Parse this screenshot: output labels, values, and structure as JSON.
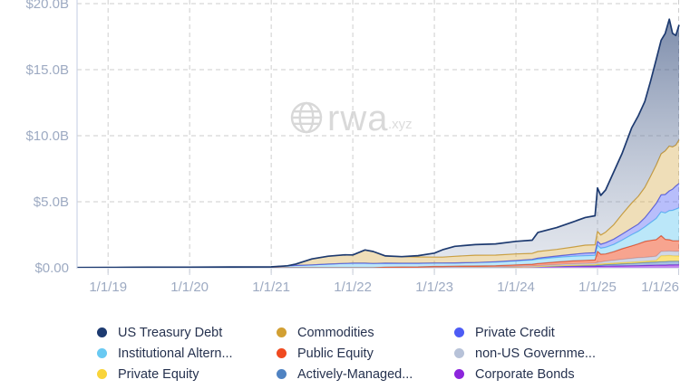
{
  "watermark": {
    "brand": "rwa",
    "suffix": ".xyz",
    "color": "#d9d9d9"
  },
  "legend": {
    "items": [
      {
        "series": "us-treasury-debt",
        "label": "US Treasury Debt",
        "color": "#1d3a70"
      },
      {
        "series": "institutional-alternative",
        "label": "Institutional Altern...",
        "color": "#69c9f2"
      },
      {
        "series": "private-equity",
        "label": "Private Equity",
        "color": "#f9d43a"
      },
      {
        "series": "commodities",
        "label": "Commodities",
        "color": "#d2a033"
      },
      {
        "series": "public-equity",
        "label": "Public Equity",
        "color": "#f04a20"
      },
      {
        "series": "actively-managed",
        "label": "Actively-Managed...",
        "color": "#5083c2"
      },
      {
        "series": "private-credit",
        "label": "Private Credit",
        "color": "#4d5cf5"
      },
      {
        "series": "non-us-government",
        "label": "non-US Governme...",
        "color": "#b7c2d8"
      },
      {
        "series": "corporate-bonds",
        "label": "Corporate Bonds",
        "color": "#8c25dc"
      }
    ]
  },
  "chart_data": {
    "type": "area",
    "stacked": true,
    "title": "",
    "xlabel": "",
    "ylabel": "",
    "x_unit": "decimal_year",
    "y_unit": "USD billions",
    "x_domain": [
      2018.62,
      2026.0
    ],
    "y_domain": [
      0,
      20
    ],
    "grid": "dashed",
    "legend_position": "bottom",
    "style": {
      "tick_label_color": "#9daac2",
      "grid_color": "#cecece",
      "axis_line_color": "#c3cde3",
      "baseline_color": "#dde2eb",
      "tick_mark_color": "#c9cfdb"
    },
    "y_ticks": [
      {
        "value": 0,
        "label": "$0.00"
      },
      {
        "value": 5,
        "label": "$5.0B"
      },
      {
        "value": 10,
        "label": "$10.0B"
      },
      {
        "value": 15,
        "label": "$15.0B"
      },
      {
        "value": 20,
        "label": "$20.0B"
      }
    ],
    "x_ticks": [
      {
        "value": 2019,
        "label": "1/1/19"
      },
      {
        "value": 2020,
        "label": "1/1/20"
      },
      {
        "value": 2021,
        "label": "1/1/21"
      },
      {
        "value": 2022,
        "label": "1/1/22"
      },
      {
        "value": 2023,
        "label": "1/1/23"
      },
      {
        "value": 2024,
        "label": "1/1/24"
      },
      {
        "value": 2025,
        "label": "1/1/25"
      },
      {
        "value": 2026,
        "label": "1/1/26"
      }
    ],
    "x": [
      2018.62,
      2019,
      2019.5,
      2020,
      2020.5,
      2021,
      2021.2,
      2021.3,
      2021.5,
      2021.7,
      2021.9,
      2022,
      2022.15,
      2022.25,
      2022.4,
      2022.6,
      2022.8,
      2023,
      2023.1,
      2023.25,
      2023.5,
      2023.75,
      2024,
      2024.2,
      2024.27,
      2024.5,
      2024.7,
      2024.85,
      2024.97,
      2025,
      2025.04,
      2025.1,
      2025.2,
      2025.3,
      2025.42,
      2025.5,
      2025.58,
      2025.65,
      2025.72,
      2025.78,
      2025.83,
      2025.88,
      2025.92,
      2025.96,
      2026
    ],
    "series": [
      {
        "name": "corporate-bonds",
        "label": "Corporate Bonds",
        "color": "#8c25dc",
        "fill": "rgba(140,37,220,0.55)",
        "values": [
          0,
          0,
          0,
          0,
          0,
          0,
          0,
          0,
          0,
          0,
          0,
          0,
          0,
          0,
          0,
          0,
          0.01,
          0.03,
          0.03,
          0.04,
          0.05,
          0.06,
          0.07,
          0.08,
          0.08,
          0.09,
          0.1,
          0.1,
          0.1,
          0.11,
          0.11,
          0.12,
          0.13,
          0.14,
          0.15,
          0.16,
          0.17,
          0.18,
          0.19,
          0.2,
          0.2,
          0.21,
          0.21,
          0.22,
          0.22
        ]
      },
      {
        "name": "actively-managed",
        "label": "Actively-Managed...",
        "color": "#5083c2",
        "fill": "rgba(80,131,194,0.5)",
        "values": [
          0,
          0,
          0,
          0,
          0,
          0,
          0,
          0,
          0,
          0,
          0,
          0,
          0,
          0,
          0,
          0,
          0,
          0,
          0,
          0,
          0,
          0,
          0,
          0,
          0,
          0.03,
          0.05,
          0.07,
          0.08,
          0.1,
          0.1,
          0.12,
          0.14,
          0.16,
          0.18,
          0.2,
          0.22,
          0.24,
          0.25,
          0.26,
          0.27,
          0.28,
          0.28,
          0.28,
          0.28
        ]
      },
      {
        "name": "private-equity",
        "label": "Private Equity",
        "color": "#f9d43a",
        "fill": "rgba(249,212,58,0.65)",
        "values": [
          0,
          0,
          0,
          0,
          0,
          0,
          0,
          0,
          0,
          0,
          0,
          0,
          0,
          0,
          0,
          0,
          0,
          0,
          0,
          0,
          0,
          0,
          0,
          0,
          0.02,
          0.04,
          0.05,
          0.05,
          0.06,
          0.07,
          0.07,
          0.08,
          0.08,
          0.09,
          0.1,
          0.1,
          0.1,
          0.1,
          0.12,
          0.45,
          0.45,
          0.44,
          0.42,
          0.4,
          0.4
        ]
      },
      {
        "name": "non-us-government",
        "label": "non-US Governme...",
        "color": "#b7c2d8",
        "fill": "rgba(183,194,216,0.65)",
        "values": [
          0,
          0,
          0,
          0,
          0,
          0,
          0,
          0,
          0,
          0,
          0,
          0,
          0,
          0,
          0,
          0,
          0,
          0,
          0,
          0,
          0,
          0,
          0.03,
          0.05,
          0.06,
          0.08,
          0.1,
          0.1,
          0.1,
          0.12,
          0.15,
          0.18,
          0.22,
          0.25,
          0.28,
          0.3,
          0.3,
          0.3,
          0.32,
          0.32,
          0.33,
          0.34,
          0.34,
          0.34,
          0.34
        ]
      },
      {
        "name": "public-equity",
        "label": "Public Equity",
        "color": "#f04a20",
        "fill": "rgba(240,74,32,0.5)",
        "values": [
          0,
          0,
          0,
          0,
          0,
          0,
          0,
          0,
          0,
          0,
          0,
          0,
          0,
          0,
          0.05,
          0.06,
          0.06,
          0.07,
          0.07,
          0.08,
          0.09,
          0.1,
          0.12,
          0.14,
          0.16,
          0.2,
          0.22,
          0.24,
          0.25,
          0.85,
          0.6,
          0.55,
          0.65,
          0.8,
          0.95,
          1.05,
          1.2,
          1.25,
          1.25,
          1.2,
          0.9,
          0.85,
          0.8,
          0.8,
          0.8
        ]
      },
      {
        "name": "institutional-alternative",
        "label": "Institutional Altern...",
        "color": "#69c9f2",
        "fill": "rgba(105,201,242,0.45)",
        "values": [
          0.02,
          0.03,
          0.04,
          0.05,
          0.06,
          0.07,
          0.15,
          0.18,
          0.22,
          0.28,
          0.33,
          0.35,
          0.35,
          0.33,
          0.3,
          0.28,
          0.27,
          0.26,
          0.26,
          0.25,
          0.26,
          0.28,
          0.3,
          0.32,
          0.33,
          0.35,
          0.35,
          0.35,
          0.35,
          0.45,
          0.45,
          0.5,
          0.55,
          0.65,
          0.85,
          0.95,
          1.1,
          1.35,
          1.6,
          1.8,
          2.0,
          2.2,
          2.3,
          2.4,
          2.5
        ]
      },
      {
        "name": "private-credit",
        "label": "Private Credit",
        "color": "#4d5cf5",
        "fill": "rgba(77,92,245,0.4)",
        "values": [
          0,
          0,
          0,
          0,
          0,
          0,
          0,
          0,
          0,
          0,
          0,
          0,
          0,
          0,
          0,
          0,
          0,
          0,
          0,
          0,
          0,
          0.02,
          0.03,
          0.05,
          0.08,
          0.1,
          0.15,
          0.2,
          0.2,
          0.3,
          0.3,
          0.35,
          0.4,
          0.45,
          0.5,
          0.55,
          0.7,
          0.9,
          1.15,
          1.3,
          1.4,
          1.5,
          1.6,
          1.75,
          1.85
        ]
      },
      {
        "name": "commodities",
        "label": "Commodities",
        "color": "#d2a033",
        "fill": "rgba(210,160,51,0.35)",
        "values": [
          0,
          0,
          0,
          0,
          0,
          0,
          0,
          0.1,
          0.45,
          0.6,
          0.65,
          0.62,
          1.0,
          0.9,
          0.55,
          0.5,
          0.48,
          0.45,
          0.45,
          0.5,
          0.55,
          0.5,
          0.5,
          0.45,
          0.5,
          0.5,
          0.55,
          0.6,
          0.6,
          0.75,
          0.7,
          0.8,
          1.1,
          1.5,
          1.9,
          2.1,
          2.3,
          2.6,
          2.9,
          3.1,
          3.3,
          3.4,
          3.2,
          3.1,
          3.3
        ]
      },
      {
        "name": "us-treasury-debt",
        "label": "US Treasury Debt",
        "color": "#1d3a70",
        "fill_gradient": [
          "rgba(38,64,115,0.6)",
          "rgba(148,162,188,0.25)"
        ],
        "stroke_width": 1.7,
        "values": [
          0,
          0,
          0,
          0,
          0,
          0,
          0,
          0,
          0,
          0,
          0,
          0,
          0,
          0,
          0,
          0,
          0.1,
          0.3,
          0.55,
          0.75,
          0.8,
          0.85,
          0.95,
          1.0,
          1.45,
          1.65,
          1.9,
          2.1,
          2.2,
          3.3,
          3.0,
          3.2,
          4.0,
          4.6,
          5.7,
          6.1,
          6.5,
          7.2,
          8.0,
          8.6,
          8.9,
          9.6,
          8.6,
          8.3,
          8.7
        ]
      }
    ]
  }
}
